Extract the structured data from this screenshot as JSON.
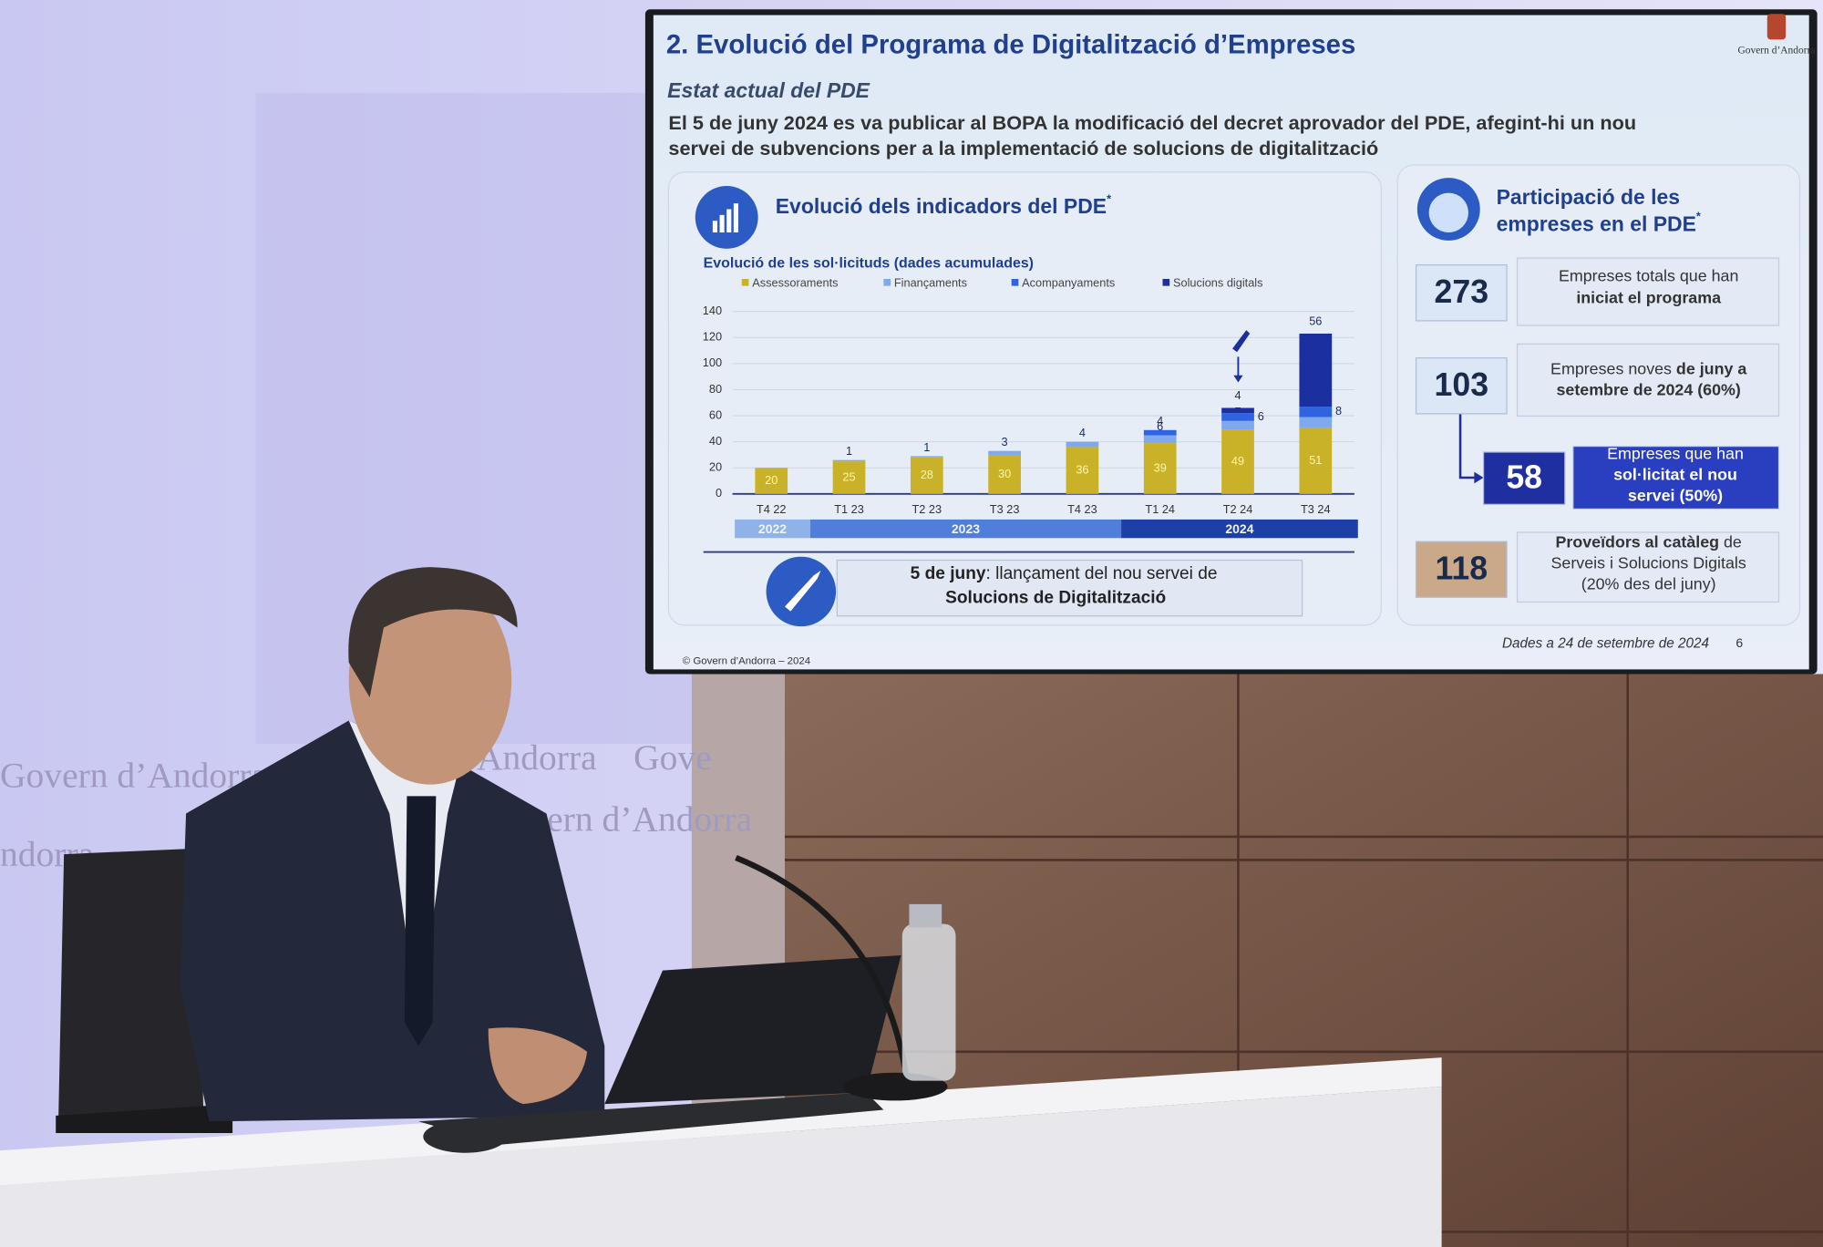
{
  "wall_text": [
    "Govern d’Andorra",
    "Andorra",
    "Gove",
    "vern d’Andorra",
    "ndorra"
  ],
  "slide": {
    "logo": "Govern d’Andorra",
    "title": "2. Evolució del Programa de Digitalització d’Empreses",
    "subtitle": "Estat actual del PDE",
    "body": [
      "El 5 de juny 2024 es va publicar al BOPA la modificació del decret aprovador del PDE, afegint-hi un nou",
      "servei de subvencions per a la implementació de solucions de digitalització"
    ],
    "chart_panel_title": "Evolució dels indicadors del PDE",
    "chart_panel_title_mark": "*",
    "year_bands": [
      "2022",
      "2023",
      "2024"
    ],
    "launch_note": {
      "bold": "5 de juny",
      "text": ": llançament del nou servei de",
      "line2": "Solucions de Digitalització"
    },
    "kpi_panel_title": [
      "Participació de les",
      "empreses en el PDE"
    ],
    "kpi_panel_title_mark": "*",
    "kpis": [
      {
        "value": 273,
        "lines": [
          [
            {
              "text": "Empreses totals que han",
              "bold": false
            }
          ],
          [
            {
              "text": "iniciat el programa",
              "bold": true
            }
          ]
        ]
      },
      {
        "value": 103,
        "lines": [
          [
            {
              "text": "Empreses noves ",
              "bold": false
            },
            {
              "text": "de juny a",
              "bold": true
            }
          ],
          [
            {
              "text": "setembre de 2024 (60%)",
              "bold": true
            }
          ]
        ]
      },
      {
        "value": 58,
        "lines": [
          [
            {
              "text": "Empreses que han",
              "bold": false
            }
          ],
          [
            {
              "text": "sol·licitat el nou",
              "bold": true
            }
          ],
          [
            {
              "text": "servei (50%)",
              "bold": true
            }
          ]
        ]
      },
      {
        "value": 118,
        "lines": [
          [
            {
              "text": "Proveïdors al catàleg",
              "bold": true
            },
            {
              "text": " de",
              "bold": false
            }
          ],
          [
            {
              "text": "Serveis i Solucions Digitals",
              "bold": false
            }
          ],
          [
            {
              "text": "(20% des del juny)",
              "bold": false
            }
          ]
        ]
      }
    ],
    "footer": "© Govern d’Andorra – 2024",
    "date_note": "Dades a 24 de setembre de 2024",
    "page_number": 6
  },
  "chart_data": {
    "type": "bar",
    "stacked": true,
    "title": "Evolució de les sol·licituds (dades acumulades)",
    "categories": [
      "T4 22",
      "T1 23",
      "T2 23",
      "T3 23",
      "T4 23",
      "T1 24",
      "T2 24",
      "T3 24"
    ],
    "series": [
      {
        "name": "Assessoraments",
        "color": "#c9b227",
        "values": [
          20,
          25,
          28,
          30,
          36,
          39,
          49,
          51
        ]
      },
      {
        "name": "Finançaments",
        "color": "#7fa9ec",
        "values": [
          null,
          1,
          1,
          3,
          4,
          6,
          7,
          8
        ]
      },
      {
        "name": "Acompanyaments",
        "color": "#2f63e0",
        "values": [
          null,
          null,
          null,
          null,
          null,
          4,
          6,
          8
        ]
      },
      {
        "name": "Solucions digitals",
        "color": "#1c2f9e",
        "values": [
          null,
          null,
          null,
          null,
          null,
          null,
          4,
          56
        ]
      }
    ],
    "ylim": [
      0,
      140
    ],
    "yticks": [
      0,
      20,
      40,
      60,
      80,
      100,
      120,
      140
    ],
    "grid": true
  }
}
